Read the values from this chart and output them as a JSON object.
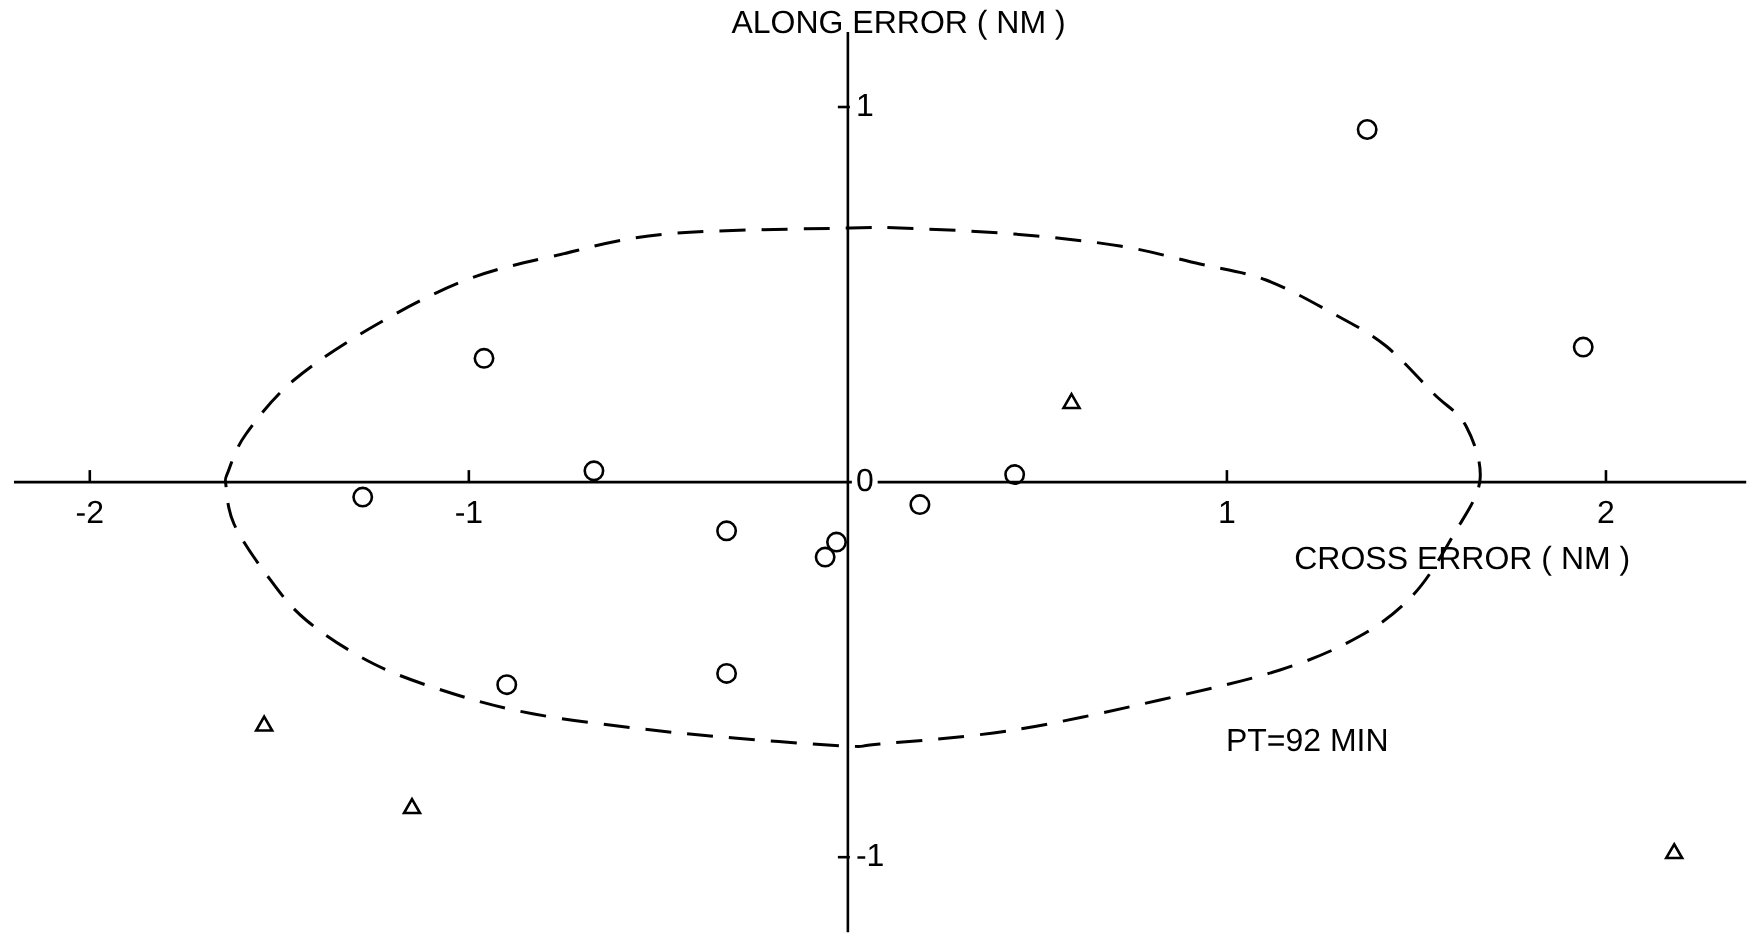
{
  "chart_data": {
    "type": "scatter",
    "xlabel": "CROSS ERROR ( NM )",
    "ylabel": "ALONG ERROR ( NM )",
    "annotations": [
      "PT=92 MIN"
    ],
    "xlim": [
      -2.2,
      2.37
    ],
    "ylim": [
      -1.2,
      1.2
    ],
    "xticks": [
      -2,
      -1,
      1,
      2
    ],
    "yticks": [
      -1,
      0,
      1
    ],
    "series": [
      {
        "marker": "circle",
        "color": "#000000",
        "x": [
          -0.96,
          1.37,
          1.94,
          -0.67,
          -1.28,
          -0.32,
          -0.03,
          -0.06,
          -0.9,
          -0.32,
          0.19,
          0.44
        ],
        "values": [
          0.33,
          0.94,
          0.36,
          0.03,
          -0.04,
          -0.13,
          -0.16,
          -0.2,
          -0.54,
          -0.51,
          -0.06,
          0.02
        ]
      },
      {
        "marker": "triangle",
        "color": "#000000",
        "x": [
          0.59,
          -1.54,
          -1.15,
          2.18
        ],
        "values": [
          0.21,
          -0.65,
          -0.87,
          -0.99
        ]
      }
    ]
  }
}
